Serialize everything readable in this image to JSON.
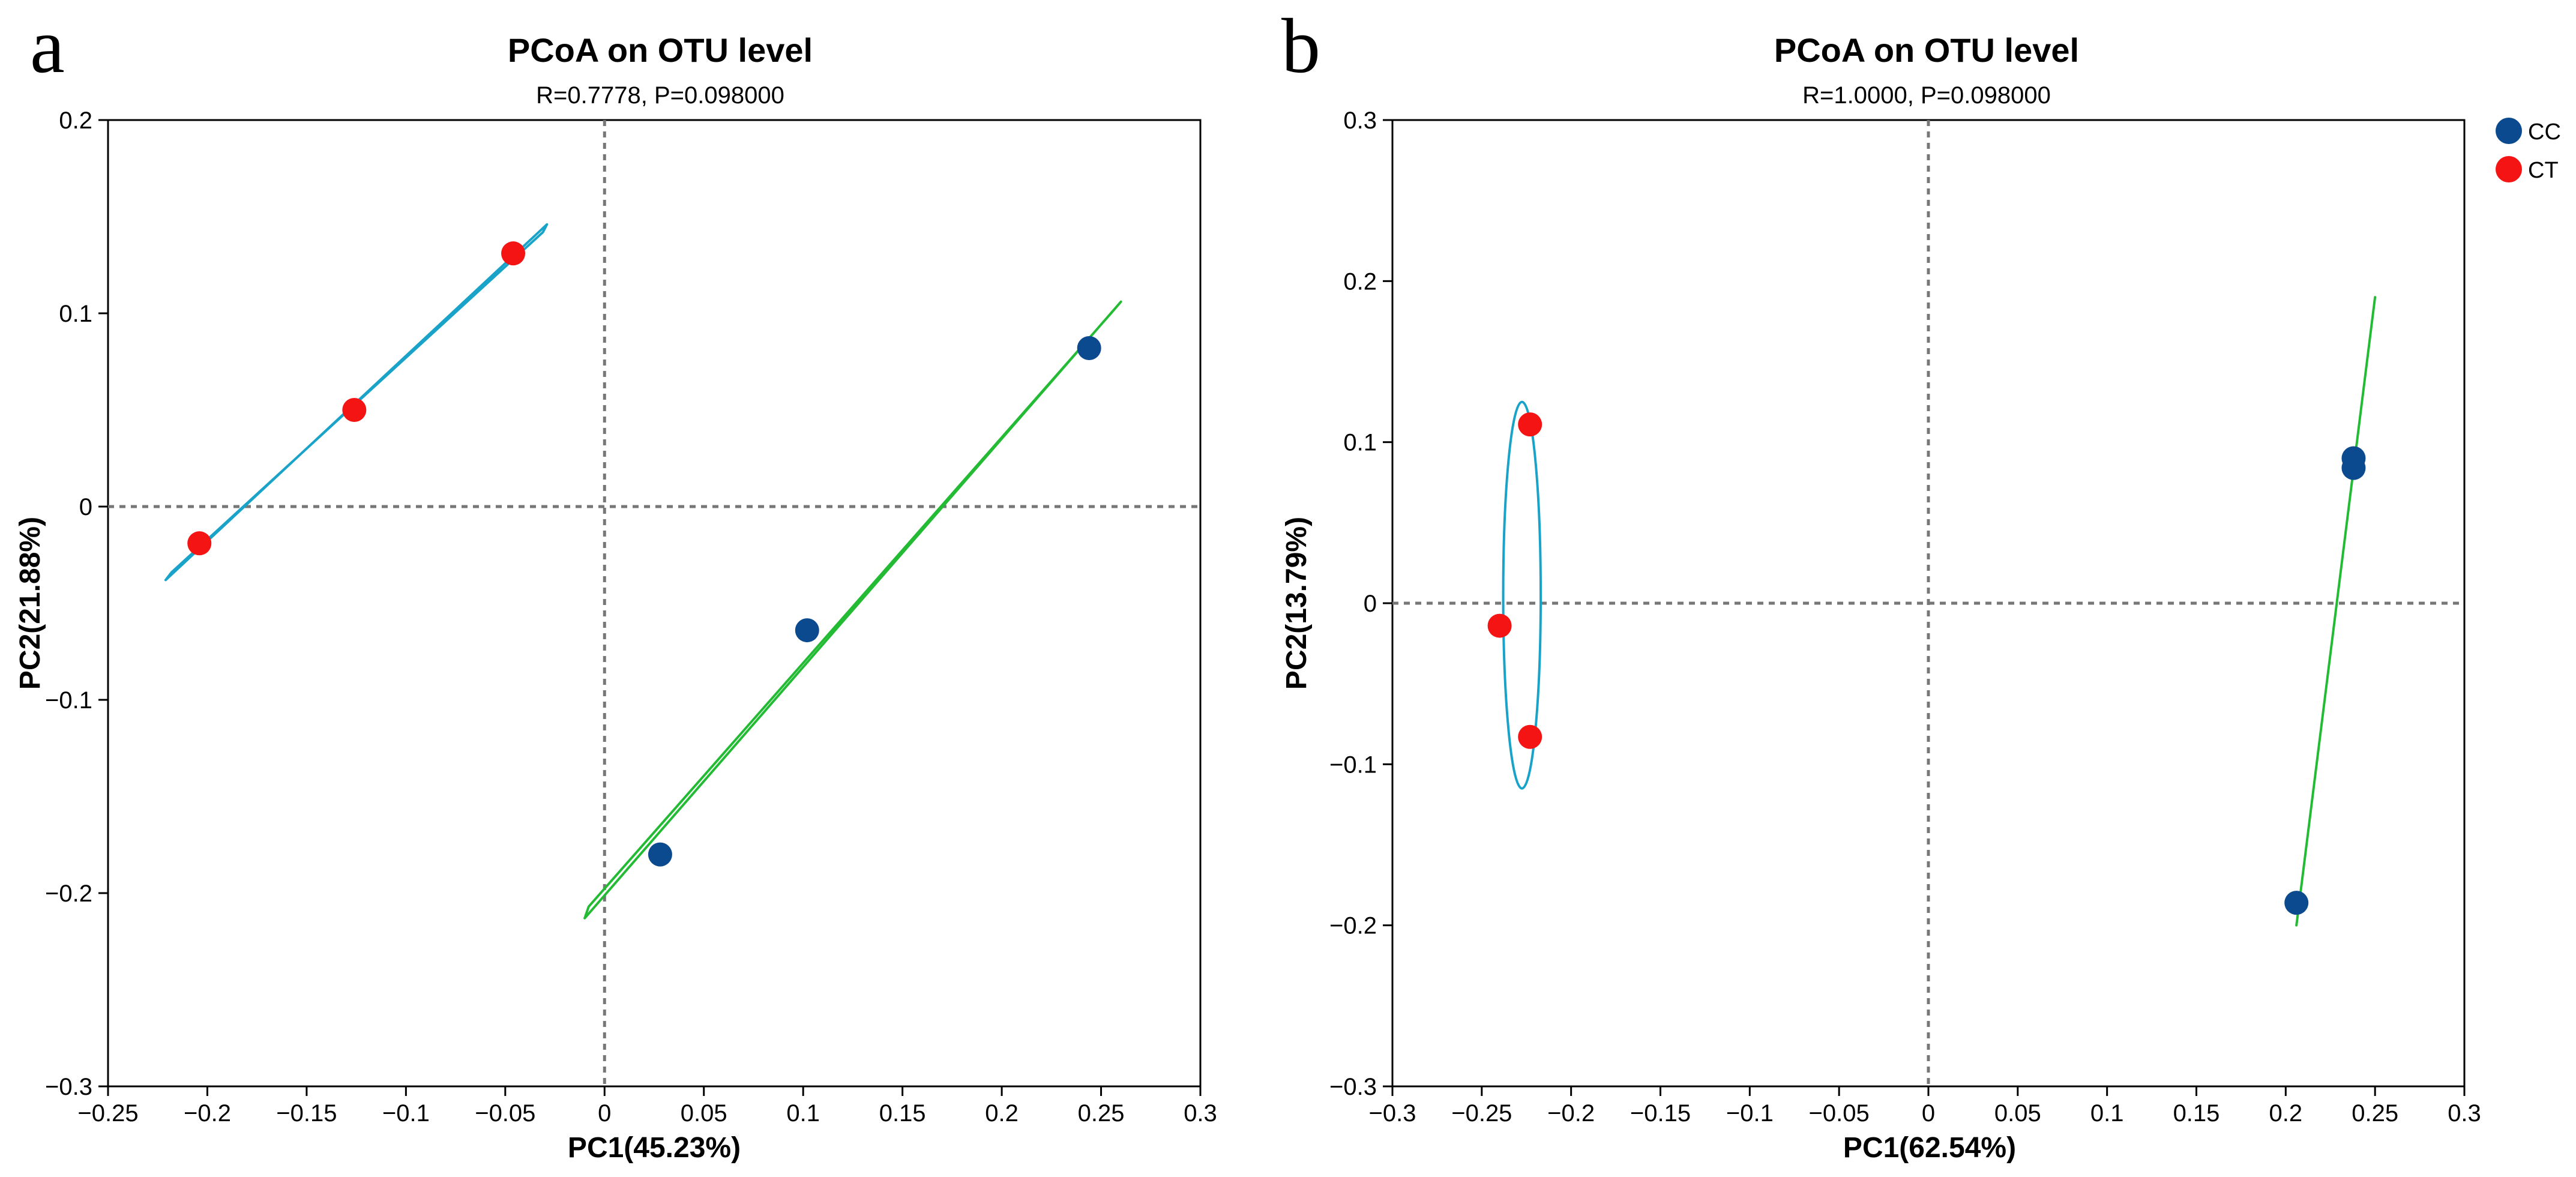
{
  "colors": {
    "CC": "#0b4a8f",
    "CT": "#f51414",
    "ellipse_CC": "#22bb33",
    "ellipse_CT": "#1aa3c8",
    "zero_line": "#777777",
    "axis": "#000000"
  },
  "legend": {
    "placement": "top-right",
    "items": [
      {
        "label": "CC",
        "color": "#0b4a8f"
      },
      {
        "label": "CT",
        "color": "#f51414"
      }
    ]
  },
  "chart_data": [
    {
      "type": "scatter",
      "panel_letter": "a",
      "title": "PCoA on OTU level",
      "subtitle": "R=0.7778, P=0.098000",
      "xlabel": "PC1(45.23%)",
      "ylabel": "PC2(21.88%)",
      "xlim": [
        -0.25,
        0.3
      ],
      "ylim": [
        -0.3,
        0.2
      ],
      "xticks": [
        -0.25,
        -0.2,
        -0.15,
        -0.1,
        -0.05,
        0,
        0.05,
        0.1,
        0.15,
        0.2,
        0.25,
        0.3
      ],
      "xtick_labels": [
        "−0.25",
        "−0.2",
        "−0.15",
        "−0.1",
        "−0.05",
        "0",
        "0.05",
        "0.1",
        "0.15",
        "0.2",
        "0.25",
        "0.3"
      ],
      "yticks": [
        -0.3,
        -0.2,
        -0.1,
        0,
        0.1,
        0.2
      ],
      "ytick_labels": [
        "−0.3",
        "−0.2",
        "−0.1",
        "0",
        "0.1",
        "0.2"
      ],
      "grid": false,
      "zero_lines": true,
      "series": [
        {
          "name": "CC",
          "color": "#0b4a8f",
          "x": [
            0.244,
            0.102,
            0.028
          ],
          "y": [
            0.082,
            -0.064,
            -0.18
          ]
        },
        {
          "name": "CT",
          "color": "#f51414",
          "x": [
            -0.046,
            -0.126,
            -0.204
          ],
          "y": [
            0.131,
            0.05,
            -0.019
          ]
        }
      ],
      "ellipses": [
        {
          "group": "CC",
          "color": "#22bb33",
          "points": [
            [
              -0.01,
              -0.213
            ],
            [
              0.26,
              0.106
            ],
            [
              0.255,
              0.1
            ],
            [
              -0.008,
              -0.207
            ]
          ]
        },
        {
          "group": "CT",
          "color": "#1aa3c8",
          "points": [
            [
              -0.221,
              -0.038
            ],
            [
              -0.029,
              0.146
            ],
            [
              -0.031,
              0.142
            ],
            [
              -0.218,
              -0.034
            ]
          ]
        }
      ]
    },
    {
      "type": "scatter",
      "panel_letter": "b",
      "title": "PCoA on OTU level",
      "subtitle": "R=1.0000, P=0.098000",
      "xlabel": "PC1(62.54%)",
      "ylabel": "PC2(13.79%)",
      "xlim": [
        -0.3,
        0.3
      ],
      "ylim": [
        -0.3,
        0.3
      ],
      "xticks": [
        -0.3,
        -0.25,
        -0.2,
        -0.15,
        -0.1,
        -0.05,
        0,
        0.05,
        0.1,
        0.15,
        0.2,
        0.25,
        0.3
      ],
      "xtick_labels": [
        "−0.3",
        "−0.25",
        "−0.2",
        "−0.15",
        "−0.1",
        "−0.05",
        "0",
        "0.05",
        "0.1",
        "0.15",
        "0.2",
        "0.25",
        "0.3"
      ],
      "yticks": [
        -0.3,
        -0.2,
        -0.1,
        0,
        0.1,
        0.2,
        0.3
      ],
      "ytick_labels": [
        "−0.3",
        "−0.2",
        "−0.1",
        "0",
        "0.1",
        "0.2",
        "0.3"
      ],
      "grid": false,
      "zero_lines": true,
      "series": [
        {
          "name": "CC",
          "color": "#0b4a8f",
          "x": [
            0.238,
            0.238,
            0.206
          ],
          "y": [
            0.09,
            0.084,
            -0.186
          ]
        },
        {
          "name": "CT",
          "color": "#f51414",
          "x": [
            -0.223,
            -0.24,
            -0.223
          ],
          "y": [
            0.111,
            -0.014,
            -0.083
          ]
        }
      ],
      "ellipses": [
        {
          "group": "CC",
          "color": "#22bb33",
          "points": [
            [
              0.25,
              0.19
            ],
            [
              0.206,
              -0.2
            ]
          ]
        },
        {
          "group": "CT",
          "color": "#1aa3c8",
          "center": [
            -0.2275,
            0.005
          ],
          "rx": 0.0105,
          "ry": 0.12
        }
      ]
    }
  ]
}
